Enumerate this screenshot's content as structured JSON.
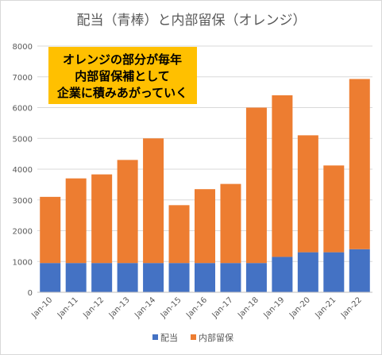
{
  "chart_data": {
    "type": "bar",
    "stacked": true,
    "title": "配当（青棒）と内部留保（オレンジ）",
    "categories": [
      "Jan-10",
      "Jan-11",
      "Jan-12",
      "Jan-13",
      "Jan-14",
      "Jan-15",
      "Jan-16",
      "Jan-17",
      "Jan-18",
      "Jan-19",
      "Jan-20",
      "Jan-21",
      "Jan-22"
    ],
    "series": [
      {
        "name": "配当",
        "color": "#4472c4",
        "values": [
          950,
          950,
          950,
          950,
          950,
          950,
          950,
          950,
          950,
          1150,
          1300,
          1300,
          1400
        ]
      },
      {
        "name": "内部留保",
        "color": "#ed7d31",
        "values": [
          2150,
          2750,
          2880,
          3350,
          4050,
          1880,
          2400,
          2570,
          5050,
          5250,
          3800,
          2820,
          5530
        ]
      }
    ],
    "ylim": [
      0,
      8000
    ],
    "yticks": [
      0,
      1000,
      2000,
      3000,
      4000,
      5000,
      6000,
      7000,
      8000
    ],
    "grid": true,
    "legend_position": "bottom",
    "callout": {
      "lines": [
        "オレンジの部分が毎年",
        "内部留保補として",
        "企業に積みあがっていく"
      ],
      "background": "#ffc000"
    }
  }
}
